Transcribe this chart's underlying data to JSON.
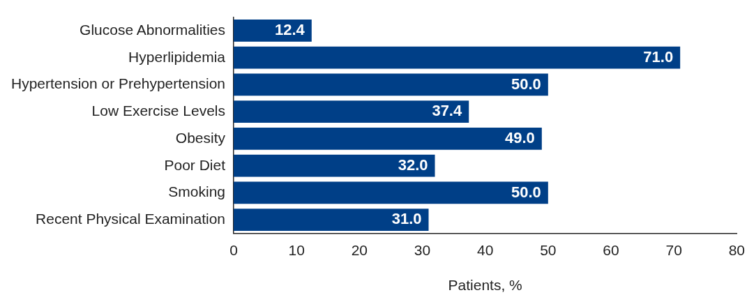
{
  "chart_data": {
    "type": "bar",
    "orientation": "horizontal",
    "categories": [
      "Glucose Abnormalities",
      "Hyperlipidemia",
      "Hypertension or Prehypertension",
      "Low Exercise Levels",
      "Obesity",
      "Poor Diet",
      "Smoking",
      "Recent Physical Examination"
    ],
    "values": [
      12.4,
      71.0,
      50.0,
      37.4,
      49.0,
      32.0,
      50.0,
      31.0
    ],
    "value_labels": [
      "12.4",
      "71.0",
      "50.0",
      "37.4",
      "49.0",
      "32.0",
      "50.0",
      "31.0"
    ],
    "color": "#003f87",
    "xlabel": "Patients, %",
    "xlim": [
      0,
      80
    ],
    "xticks": [
      0,
      10,
      20,
      30,
      40,
      50,
      60,
      70,
      80
    ],
    "grid": false,
    "legend": false
  }
}
